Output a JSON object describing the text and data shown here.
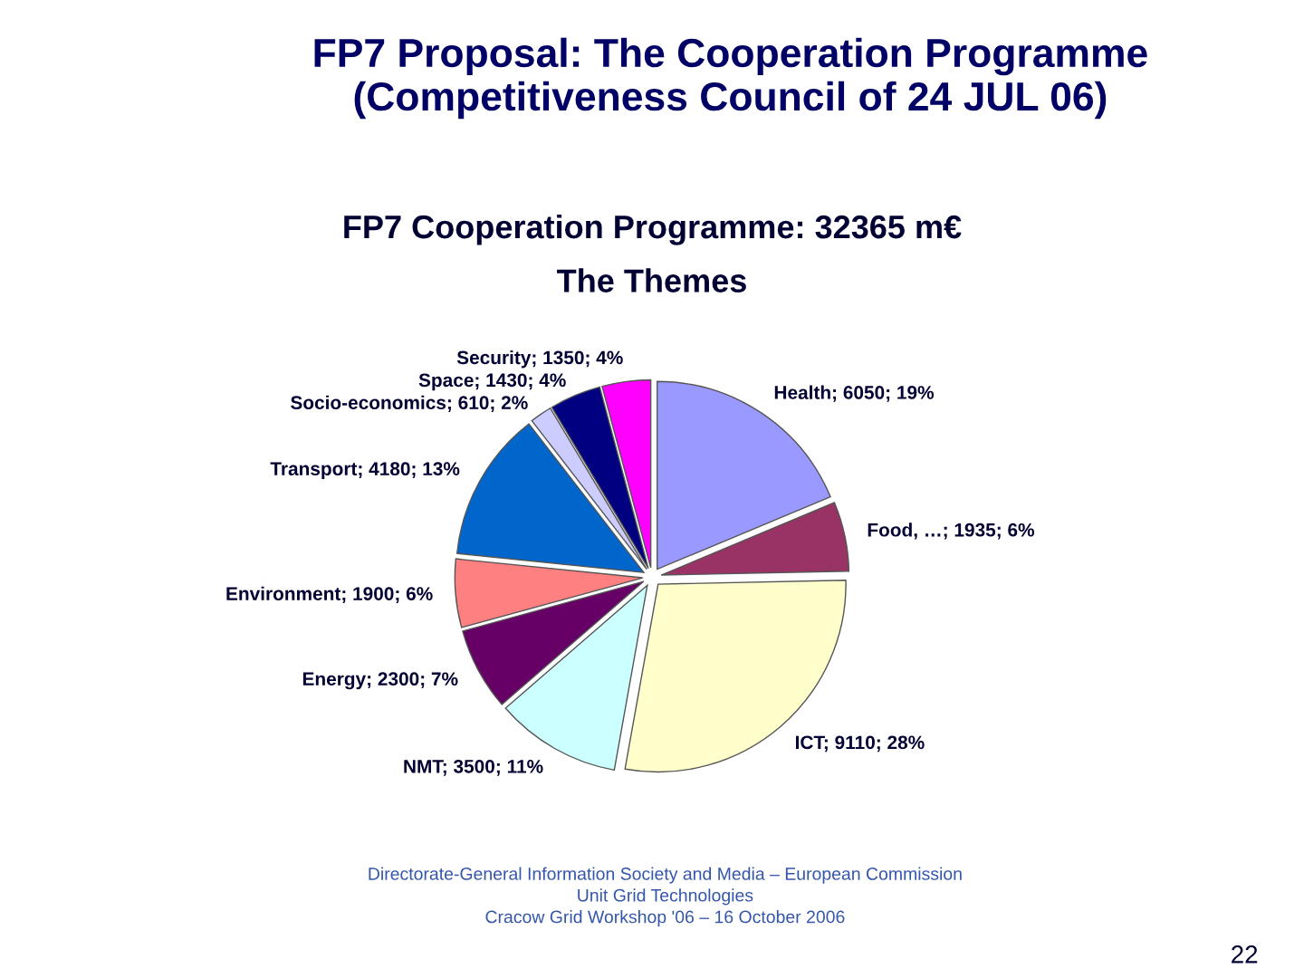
{
  "chart_data": {
    "type": "pie",
    "title": "FP7 Cooperation Programme: 32365 m€",
    "subtitle": "The Themes",
    "categories": [
      "Health; 6050; 19%",
      "Food, …; 1935; 6%",
      "ICT; 9110; 28%",
      "NMT; 3500; 11%",
      "Energy; 2300; 7%",
      "Environment; 1900; 6%",
      "Transport; 4180; 13%",
      "Socio-economics; 610; 2%",
      "Space; 1430; 4%",
      "Security; 1350; 4%"
    ],
    "values": [
      6050,
      1935,
      9110,
      3500,
      2300,
      1900,
      4180,
      610,
      1430,
      1350
    ],
    "colors": [
      "#9999ff",
      "#993366",
      "#ffffcc",
      "#ccffff",
      "#660066",
      "#ff8080",
      "#0066cc",
      "#ccccff",
      "#000080",
      "#ff00ff"
    ],
    "legend": false,
    "annotations": [
      "FP7 Proposal: The Cooperation Programme\n(Competitiveness Council of 24 JUL 06)",
      "Directorate-General Information Society and Media – European Commission",
      "Unit Grid Technologies",
      "Cracow Grid Workshop '06 – 16 October 2006",
      "22"
    ]
  }
}
